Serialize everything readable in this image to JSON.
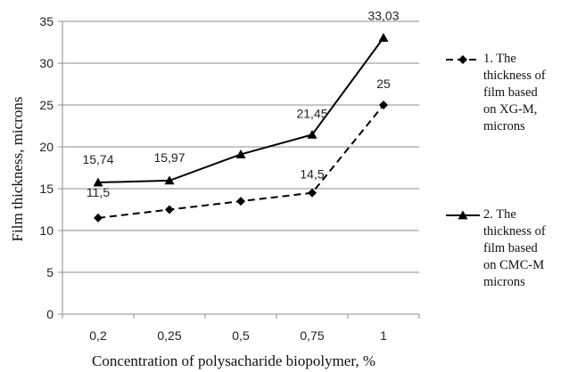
{
  "chart_data": {
    "type": "line",
    "categories": [
      "0,2",
      "0,25",
      "0,5",
      "0,75",
      "1"
    ],
    "series": [
      {
        "name": "1. The thickness of film based on XG-M, microns",
        "name_lines": [
          "1. The",
          "thickness of",
          "film based",
          "on XG-M,",
          "microns"
        ],
        "values": [
          11.5,
          12.5,
          13.5,
          14.5,
          25
        ],
        "labels": [
          "11,5",
          "",
          "",
          "14,5",
          "25"
        ],
        "color": "#000000",
        "dash": "dashed",
        "marker": "diamond"
      },
      {
        "name": "2. The thickness of film based on CMC-M microns",
        "name_lines": [
          "2. The",
          "thickness of",
          "film based",
          "on CMC-M",
          "microns"
        ],
        "values": [
          15.74,
          15.97,
          19.1,
          21.45,
          33.03
        ],
        "labels": [
          "15,74",
          "15,97",
          "",
          "21,45",
          "33,03"
        ],
        "color": "#000000",
        "dash": "solid",
        "marker": "triangle"
      }
    ],
    "xlabel": "Concentration of polysacharide biopolymer, %",
    "ylabel": "Film thickness, microns",
    "ylim": [
      0,
      35
    ],
    "yticks": [
      0,
      5,
      10,
      15,
      20,
      25,
      30,
      35
    ],
    "grid": true,
    "legend": "right"
  }
}
